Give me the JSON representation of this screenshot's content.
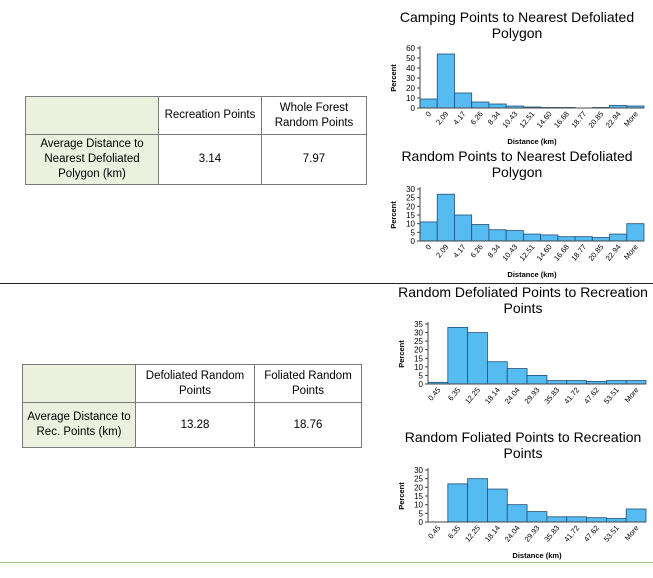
{
  "table1": {
    "headers": [
      "Recreation Points",
      "Whole Forest Random Points"
    ],
    "row_label": "Average Distance to Nearest Defoliated Polygon (km)",
    "values": [
      "3.14",
      "7.97"
    ]
  },
  "table2": {
    "headers": [
      "Defoliated Random Points",
      "Foliated Random Points"
    ],
    "row_label": "Average Distance to Rec. Points (km)",
    "values": [
      "13.28",
      "18.76"
    ]
  },
  "colors": {
    "bar": "#55bbf0",
    "bar_stroke": "#1f4f78",
    "table_fill": "#ebf1de"
  },
  "chart_data": [
    {
      "type": "bar",
      "title": "Camping Points to Nearest Defoliated Polygon",
      "xlabel": "Distance (km)",
      "ylabel": "Percent",
      "categories": [
        "0",
        "2.09",
        "4.17",
        "6.26",
        "8.34",
        "10.43",
        "12.51",
        "14.60",
        "16.68",
        "18.77",
        "20.85",
        "22.94",
        "More"
      ],
      "values": [
        9,
        54,
        15,
        6,
        4,
        2,
        1,
        0.5,
        0.5,
        0,
        0.5,
        2.5,
        2
      ],
      "yticks": [
        0,
        10,
        20,
        30,
        40,
        50,
        60
      ],
      "ylim": [
        0,
        60
      ]
    },
    {
      "type": "bar",
      "title": "Random Points to Nearest Defoliated Polygon",
      "xlabel": "Distance (km)",
      "ylabel": "Percent",
      "categories": [
        "0",
        "2.09",
        "4.17",
        "6.26",
        "8.34",
        "10.43",
        "12.51",
        "14.60",
        "16.68",
        "18.77",
        "20.85",
        "22.94",
        "More"
      ],
      "values": [
        11,
        27,
        15,
        9.5,
        6.5,
        6,
        4,
        3.5,
        2.5,
        2.5,
        2,
        4,
        10
      ],
      "yticks": [
        0,
        5,
        10,
        15,
        20,
        25,
        30
      ],
      "ylim": [
        0,
        30
      ]
    },
    {
      "type": "bar",
      "title": "Random Defoliated Points to Recreation Points",
      "xlabel": "",
      "ylabel": "Percent",
      "categories": [
        "0.45",
        "6.35",
        "12.25",
        "18.14",
        "24.04",
        "29.93",
        "35.83",
        "41.72",
        "47.62",
        "53.51",
        "More"
      ],
      "values": [
        1,
        33,
        30,
        13,
        9,
        5,
        2,
        2,
        1.5,
        2,
        2
      ],
      "yticks": [
        0,
        5,
        10,
        15,
        20,
        25,
        30,
        35
      ],
      "ylim": [
        0,
        35
      ]
    },
    {
      "type": "bar",
      "title": "Random Foliated Points to Recreation Points",
      "xlabel": "Distance (km)",
      "ylabel": "Percent",
      "categories": [
        "0.45",
        "6.35",
        "12.25",
        "18.14",
        "24.04",
        "29.93",
        "35.83",
        "41.72",
        "47.62",
        "53.51",
        "More"
      ],
      "values": [
        0,
        22,
        25,
        19,
        10,
        6,
        3,
        3,
        2.5,
        2,
        7.5
      ],
      "yticks": [
        0,
        5,
        10,
        15,
        20,
        25,
        30
      ],
      "ylim": [
        0,
        30
      ]
    }
  ]
}
